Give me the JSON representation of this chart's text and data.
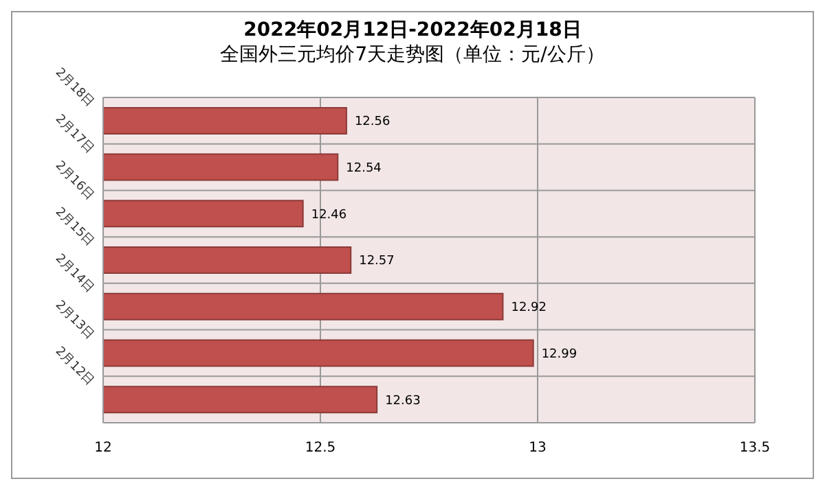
{
  "chart_data": {
    "type": "bar",
    "orientation": "horizontal",
    "title": "2022年02月12日-2022年02月18日",
    "subtitle": "全国外三元均价7天走势图（单位：元/公斤）",
    "categories": [
      "2月18日",
      "2月17日",
      "2月16日",
      "2月15日",
      "2月14日",
      "2月13日",
      "2月12日"
    ],
    "values": [
      12.56,
      12.54,
      12.46,
      12.57,
      12.92,
      12.99,
      12.63
    ],
    "color": "#c0504d",
    "xlim": [
      12,
      13.5
    ],
    "xticks": [
      12,
      12.5,
      13,
      13.5
    ],
    "grid": true,
    "data_labels": true
  }
}
